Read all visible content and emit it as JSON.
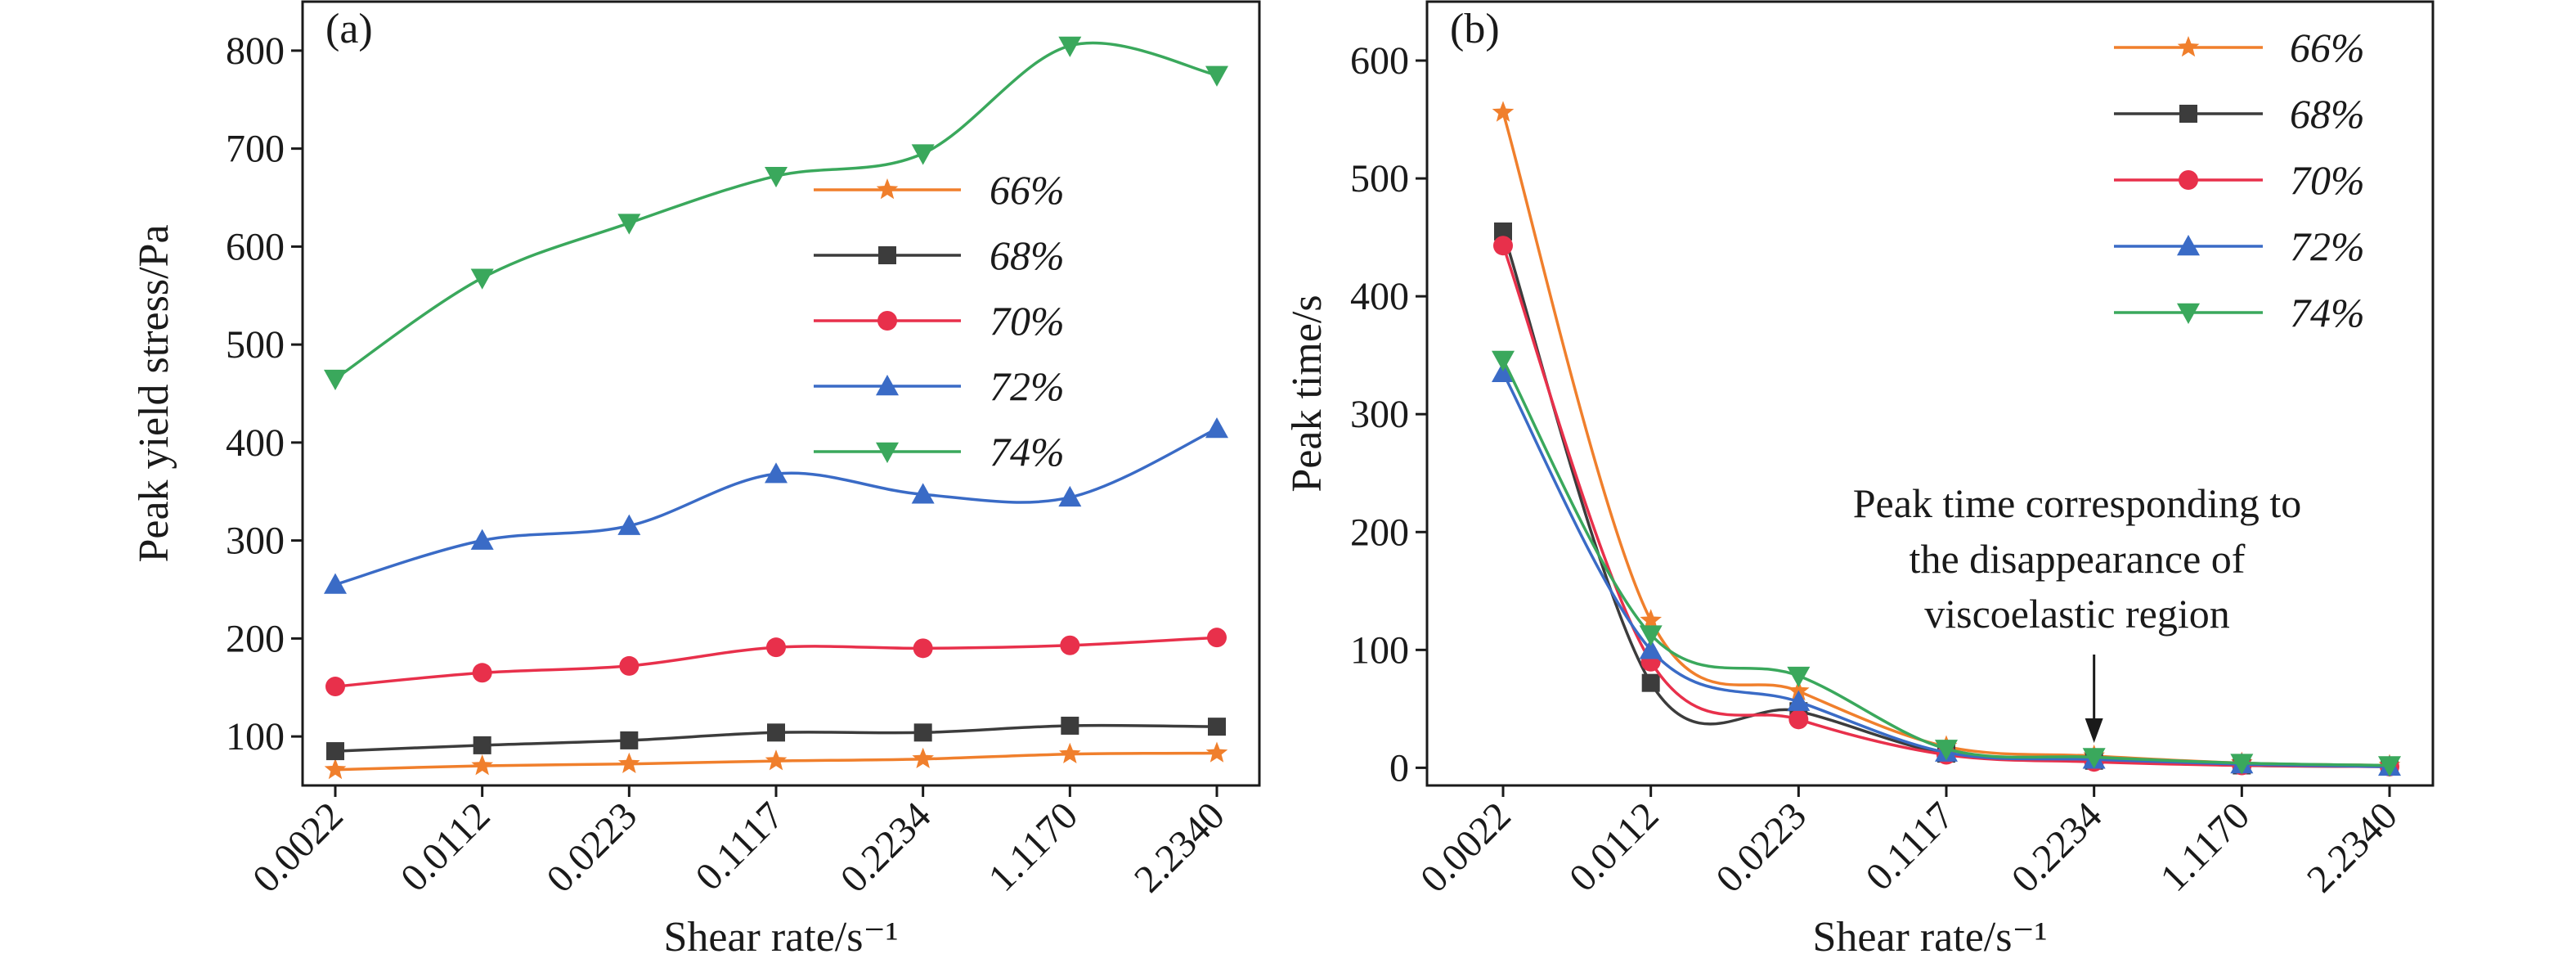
{
  "chart_data": [
    {
      "type": "line",
      "panel_label": "(a)",
      "categories": [
        "0.0022",
        "0.0112",
        "0.0223",
        "0.1117",
        "0.2234",
        "1.1170",
        "2.2340"
      ],
      "xlabel": "Shear rate/s⁻¹",
      "ylabel": "Peak yield stress/Pa",
      "ylim": [
        50,
        850
      ],
      "yticks": [
        100,
        200,
        300,
        400,
        500,
        600,
        700,
        800
      ],
      "legend_position": "center-right",
      "grid": false,
      "series": [
        {
          "name": "66%",
          "color": "#f07f2c",
          "marker": "star",
          "values": [
            66,
            70,
            72,
            75,
            77,
            82,
            83
          ]
        },
        {
          "name": "68%",
          "color": "#3c3c3c",
          "marker": "square",
          "values": [
            85,
            91,
            96,
            104,
            104,
            111,
            110
          ]
        },
        {
          "name": "70%",
          "color": "#e8304b",
          "marker": "circle",
          "values": [
            151,
            165,
            172,
            191,
            190,
            193,
            201
          ]
        },
        {
          "name": "72%",
          "color": "#3a6bc6",
          "marker": "triangle-up",
          "values": [
            255,
            300,
            315,
            368,
            347,
            344,
            414
          ]
        },
        {
          "name": "74%",
          "color": "#3aa85c",
          "marker": "triangle-down",
          "values": [
            465,
            568,
            624,
            672,
            695,
            805,
            775
          ]
        }
      ]
    },
    {
      "type": "line",
      "panel_label": "(b)",
      "categories": [
        "0.0022",
        "0.0112",
        "0.0223",
        "0.1117",
        "0.2234",
        "1.1170",
        "2.2340"
      ],
      "xlabel": "Shear rate/s⁻¹",
      "ylabel": "Peak time/s",
      "ylim": [
        -15,
        650
      ],
      "yticks": [
        0,
        100,
        200,
        300,
        400,
        500,
        600
      ],
      "legend_position": "top-right",
      "grid": false,
      "annotation": {
        "lines": [
          "Peak time corresponding to",
          "the disappearance of",
          "viscoelastic region"
        ],
        "target_category": "0.2234"
      },
      "series": [
        {
          "name": "66%",
          "color": "#f07f2c",
          "marker": "star",
          "values": [
            556,
            125,
            65,
            18,
            10,
            4,
            2
          ]
        },
        {
          "name": "68%",
          "color": "#3c3c3c",
          "marker": "square",
          "values": [
            455,
            72,
            48,
            12,
            6,
            2,
            1
          ]
        },
        {
          "name": "70%",
          "color": "#e8304b",
          "marker": "circle",
          "values": [
            443,
            90,
            41,
            11,
            5,
            2,
            1
          ]
        },
        {
          "name": "72%",
          "color": "#3a6bc6",
          "marker": "triangle-up",
          "values": [
            335,
            100,
            56,
            13,
            7,
            3,
            1
          ]
        },
        {
          "name": "74%",
          "color": "#3aa85c",
          "marker": "triangle-down",
          "values": [
            346,
            113,
            78,
            16,
            9,
            4,
            2
          ]
        }
      ]
    }
  ]
}
